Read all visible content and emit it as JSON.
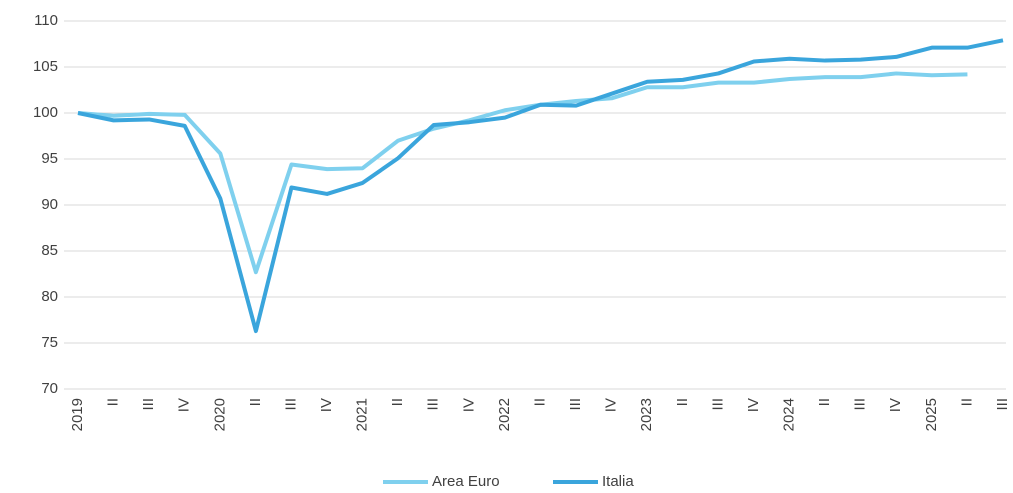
{
  "chart_data": {
    "type": "line",
    "categories": [
      "2019",
      "II",
      "III",
      "IV",
      "2020",
      "II",
      "III",
      "IV",
      "2021",
      "II",
      "III",
      "IV",
      "2022",
      "II",
      "III",
      "IV",
      "2023",
      "II",
      "III",
      "IV",
      "2024",
      "II",
      "III",
      "IV",
      "2025",
      "II",
      "III"
    ],
    "series": [
      {
        "name": "Area Euro",
        "color": "#7fd0ee",
        "values": [
          100,
          99.7,
          99.9,
          99.8,
          95.6,
          82.7,
          94.4,
          93.9,
          94.0,
          97.0,
          98.3,
          99.2,
          100.3,
          100.9,
          101.3,
          101.6,
          102.8,
          102.8,
          103.3,
          103.3,
          103.7,
          103.9,
          103.9,
          104.3,
          104.1,
          104.2,
          null
        ]
      },
      {
        "name": "Italia",
        "color": "#3aa5dc",
        "values": [
          100,
          99.2,
          99.3,
          98.6,
          90.7,
          76.3,
          91.9,
          91.2,
          92.4,
          95.1,
          98.7,
          99.0,
          99.5,
          100.9,
          100.8,
          102.1,
          103.4,
          103.6,
          104.3,
          105.6,
          105.9,
          105.7,
          105.8,
          106.1,
          107.1,
          107.1,
          107.9
        ]
      }
    ],
    "ylim": [
      70,
      110
    ],
    "yticks": [
      70,
      75,
      80,
      85,
      90,
      95,
      100,
      105,
      110
    ],
    "grid": true,
    "legend": "bottom"
  }
}
